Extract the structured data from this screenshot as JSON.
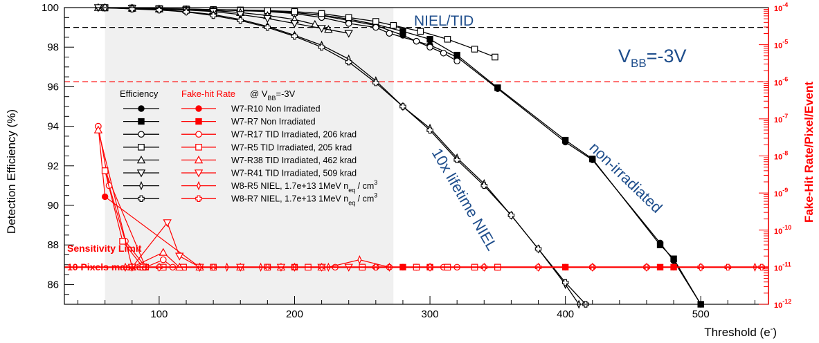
{
  "chart_data": {
    "type": "line",
    "xlabel": "Threshold (e",
    "xlabel_sup": "-",
    "xlabel_close": ")",
    "ylabel": "Detection Efficiency (%)",
    "y2label": "Fake-Hit Rate/Pixel/Event",
    "xlim": [
      30,
      550
    ],
    "ylim": [
      85,
      100
    ],
    "y2lim_log10": [
      -12,
      -4
    ],
    "x_ticks": [
      100,
      200,
      300,
      400,
      500
    ],
    "x_tick_labels": [
      "100",
      "200",
      "300",
      "400",
      "500"
    ],
    "y_ticks": [
      86,
      88,
      90,
      92,
      94,
      96,
      98,
      100
    ],
    "y_tick_labels": [
      "86",
      "88",
      "90",
      "92",
      "94",
      "96",
      "98",
      "100"
    ],
    "y2_ticks": [
      -12,
      -11,
      -10,
      -9,
      -8,
      -7,
      -6,
      -5,
      -4
    ],
    "y2_tick_labels": [
      "10^-12",
      "10^-11",
      "10^-10",
      "10^-9",
      "10^-8",
      "10^-7",
      "10^-6",
      "10^-5",
      "10^-4"
    ],
    "shaded_region_x": [
      60,
      273
    ],
    "reference_lines": [
      {
        "axis": "y",
        "value": 99,
        "color": "#000000",
        "label": "NIEL/TID"
      },
      {
        "axis": "y2_log10",
        "value": -6,
        "color": "#ff0000",
        "label": ""
      }
    ],
    "annotations": {
      "niel_tid": "NIEL/TID",
      "vbb_main": "V",
      "vbb_sub": "BB",
      "vbb_rest": "=-3V",
      "lifetime": "10x lifetime NIEL",
      "non_irradiated": "non-irradiated",
      "sensitivity_limit": "Sensitivity Limit",
      "pixels_masked": "10 Pixels masked"
    },
    "legend": {
      "header_efficiency": "Efficiency",
      "header_fakehit": "Fake-hit Rate",
      "header_condition_pre": "@ V",
      "header_condition_sub": "BB",
      "header_condition_post": "=-3V",
      "entries": [
        {
          "label": "W7-R10 Non Irradiated",
          "marker": "circle-filled"
        },
        {
          "label": "W7-R7 Non Irradiated",
          "marker": "square-filled"
        },
        {
          "label": "W7-R17 TID Irradiated, 206 krad",
          "marker": "circle-open"
        },
        {
          "label": "W7-R5 TID Irradiated, 205 krad",
          "marker": "square-open"
        },
        {
          "label": "W7-R38 TID Irradiated, 462 krad",
          "marker": "triangle-up-open"
        },
        {
          "label": "W7-R41 TID Irradiated, 509 krad",
          "marker": "triangle-down-open"
        },
        {
          "label": "W8-R5 NIEL, 1.7e+13 1MeV n",
          "label_sub": "eq",
          "label_post": " / cm",
          "label_sup": "3",
          "marker": "diamond-thin"
        },
        {
          "label": "W8-R7 NIEL, 1.7e+13 1MeV n",
          "label_sub": "eq",
          "label_post": " / cm",
          "label_sup": "3",
          "marker": "cross-open"
        }
      ]
    },
    "efficiency_series": [
      {
        "name": "W7-R10 Non Irradiated",
        "marker": "circle-filled",
        "x": [
          60,
          80,
          100,
          120,
          140,
          160,
          180,
          200,
          220,
          240,
          260,
          280,
          290,
          300,
          320,
          350,
          400,
          420,
          470,
          480,
          500
        ],
        "y": [
          100,
          100,
          99.95,
          99.92,
          99.9,
          99.88,
          99.8,
          99.75,
          99.6,
          99.35,
          99.1,
          98.6,
          98.3,
          98.1,
          97.5,
          95.9,
          93.2,
          92.3,
          88.1,
          87.2,
          85.0
        ]
      },
      {
        "name": "W7-R7 Non Irradiated",
        "marker": "square-filled",
        "x": [
          60,
          80,
          100,
          120,
          140,
          160,
          180,
          200,
          220,
          240,
          260,
          280,
          300,
          320,
          350,
          400,
          420,
          470,
          480,
          500
        ],
        "y": [
          99.98,
          99.95,
          99.93,
          99.9,
          99.88,
          99.85,
          99.82,
          99.75,
          99.62,
          99.42,
          99.15,
          98.8,
          98.4,
          97.6,
          95.95,
          93.3,
          92.35,
          88.0,
          87.3,
          85.0
        ]
      },
      {
        "name": "W7-R17 TID Irradiated, 206 krad",
        "marker": "circle-open",
        "x": [
          55,
          80,
          100,
          120,
          140,
          160,
          180,
          200,
          220,
          240,
          260,
          270,
          290,
          300,
          310,
          320
        ],
        "y": [
          100,
          99.97,
          99.95,
          99.92,
          99.9,
          99.85,
          99.8,
          99.7,
          99.5,
          99.2,
          99.0,
          98.7,
          98.3,
          98.0,
          97.7,
          97.3
        ]
      },
      {
        "name": "W7-R5 TID Irradiated, 205 krad",
        "marker": "square-open",
        "x": [
          60,
          80,
          100,
          120,
          140,
          160,
          180,
          200,
          220,
          240,
          260,
          273,
          293,
          313,
          333,
          348
        ],
        "y": [
          100,
          99.98,
          99.95,
          99.93,
          99.9,
          99.88,
          99.85,
          99.8,
          99.7,
          99.5,
          99.3,
          99.1,
          98.8,
          98.4,
          97.9,
          97.5
        ]
      },
      {
        "name": "W7-R38 TID Irradiated, 462 krad",
        "marker": "triangle-up-open",
        "x": [
          55,
          80,
          100,
          120,
          140,
          160,
          180,
          200,
          215,
          225
        ],
        "y": [
          100,
          99.97,
          99.93,
          99.9,
          99.85,
          99.75,
          99.6,
          99.4,
          99.15,
          98.9
        ]
      },
      {
        "name": "W7-R41 TID Irradiated, 509 krad",
        "marker": "triangle-down-open",
        "x": [
          55,
          80,
          100,
          120,
          140,
          160,
          180,
          200,
          220,
          240
        ],
        "y": [
          100,
          99.97,
          99.93,
          99.88,
          99.8,
          99.65,
          99.45,
          99.2,
          98.95,
          98.7
        ]
      },
      {
        "name": "W8-R5 NIEL, 1.7e+13 1MeV neq / cm3",
        "marker": "diamond-thin",
        "x": [
          60,
          80,
          100,
          120,
          140,
          160,
          180,
          200,
          220,
          240,
          260,
          280,
          300,
          320,
          340,
          360,
          380,
          400,
          410
        ],
        "y": [
          100,
          99.95,
          99.9,
          99.8,
          99.65,
          99.4,
          99.05,
          98.6,
          98.1,
          97.4,
          96.3,
          95.0,
          93.9,
          92.4,
          91.1,
          89.5,
          87.8,
          86.0,
          85.0
        ]
      },
      {
        "name": "W8-R7 NIEL, 1.7e+13 1MeV neq / cm3",
        "marker": "cross-open",
        "x": [
          60,
          80,
          100,
          120,
          140,
          160,
          180,
          200,
          220,
          240,
          260,
          280,
          300,
          320,
          340,
          360,
          380,
          400,
          415
        ],
        "y": [
          100,
          99.93,
          99.88,
          99.78,
          99.6,
          99.35,
          99.0,
          98.55,
          98.0,
          97.25,
          96.2,
          95.0,
          93.8,
          92.3,
          91.0,
          89.5,
          87.8,
          86.1,
          85.0
        ]
      }
    ],
    "fakehit_series": [
      {
        "name": "W7-R10 Non Irradiated",
        "marker": "circle-filled",
        "x": [
          55,
          60,
          130,
          200,
          280,
          290,
          300,
          350,
          400,
          420,
          460,
          480
        ],
        "y_log10": [
          -7.2,
          -9.1,
          -11.0,
          -11.0,
          -11.0,
          -11.0,
          -11.0,
          -11.0,
          -11.0,
          -11.0,
          -11.0,
          -11.0
        ]
      },
      {
        "name": "W7-R7 Non Irradiated",
        "marker": "square-filled",
        "x": [
          60,
          90,
          130,
          200,
          280,
          300,
          350,
          400,
          470,
          480
        ],
        "y_log10": [
          -8.4,
          -11.0,
          -11.0,
          -11.0,
          -11.0,
          -11.0,
          -11.0,
          -11.0,
          -11.0,
          -11.0
        ]
      },
      {
        "name": "W7-R17 TID Irradiated, 206 krad",
        "marker": "circle-open",
        "x": [
          55,
          63,
          75,
          90,
          103,
          110,
          130,
          160,
          200,
          230,
          250,
          260,
          270,
          290,
          300,
          310,
          320
        ],
        "y_log10": [
          -7.2,
          -8.8,
          -10.3,
          -11.0,
          -10.8,
          -11.0,
          -11.0,
          -11.0,
          -11.0,
          -11.0,
          -11.0,
          -11.0,
          -11.0,
          -11.0,
          -11.0,
          -11.0,
          -11.0
        ]
      },
      {
        "name": "W7-R5 TID Irradiated, 205 krad",
        "marker": "square-open",
        "x": [
          60,
          73,
          88,
          103,
          118,
          140,
          180,
          210,
          250,
          290,
          313,
          333,
          350
        ],
        "y_log10": [
          -8.4,
          -10.3,
          -11.0,
          -11.0,
          -11.0,
          -11.0,
          -11.0,
          -11.0,
          -11.0,
          -11.0,
          -11.0,
          -11.0,
          -11.0
        ]
      },
      {
        "name": "W7-R38 TID Irradiated, 462 krad",
        "marker": "triangle-up-open",
        "x": [
          55,
          80,
          103,
          115,
          130,
          160,
          190,
          220
        ],
        "y_log10": [
          -7.3,
          -11.0,
          -10.6,
          -11.0,
          -11.0,
          -11.0,
          -11.0,
          -11.0
        ]
      },
      {
        "name": "W7-R41 TID Irradiated, 509 krad",
        "marker": "triangle-down-open",
        "x": [
          80,
          106,
          115,
          130,
          160,
          190,
          220,
          240
        ],
        "y_log10": [
          -11.0,
          -9.8,
          -10.7,
          -11.0,
          -11.0,
          -11.0,
          -11.0,
          -11.0
        ]
      },
      {
        "name": "W8-R5 NIEL, 1.7e+13 1MeV neq / cm3",
        "marker": "diamond-thin",
        "x": [
          75,
          100,
          130,
          150,
          175,
          200,
          225,
          248,
          270,
          300,
          340,
          380,
          420,
          460,
          500,
          540
        ],
        "y_log10": [
          -11.0,
          -11.0,
          -11.0,
          -11.0,
          -11.0,
          -11.0,
          -11.0,
          -10.8,
          -11.0,
          -11.0,
          -11.0,
          -11.0,
          -11.0,
          -11.0,
          -11.0,
          -11.0
        ]
      },
      {
        "name": "W8-R7 NIEL, 1.7e+13 1MeV neq / cm3",
        "marker": "cross-open",
        "x": [
          100,
          140,
          180,
          220,
          260,
          300,
          340,
          380,
          420,
          460,
          500,
          520,
          545
        ],
        "y_log10": [
          -11.0,
          -11.0,
          -11.0,
          -11.0,
          -11.0,
          -11.0,
          -11.0,
          -11.0,
          -11.0,
          -11.0,
          -11.0,
          -11.0,
          -11.0
        ]
      }
    ],
    "sensitivity_limit_log10": -11.0,
    "colors": {
      "efficiency": "#000000",
      "fakehit": "#ff0000",
      "annotation": "#1f4e8c",
      "shade": "#f0f0f0"
    }
  }
}
